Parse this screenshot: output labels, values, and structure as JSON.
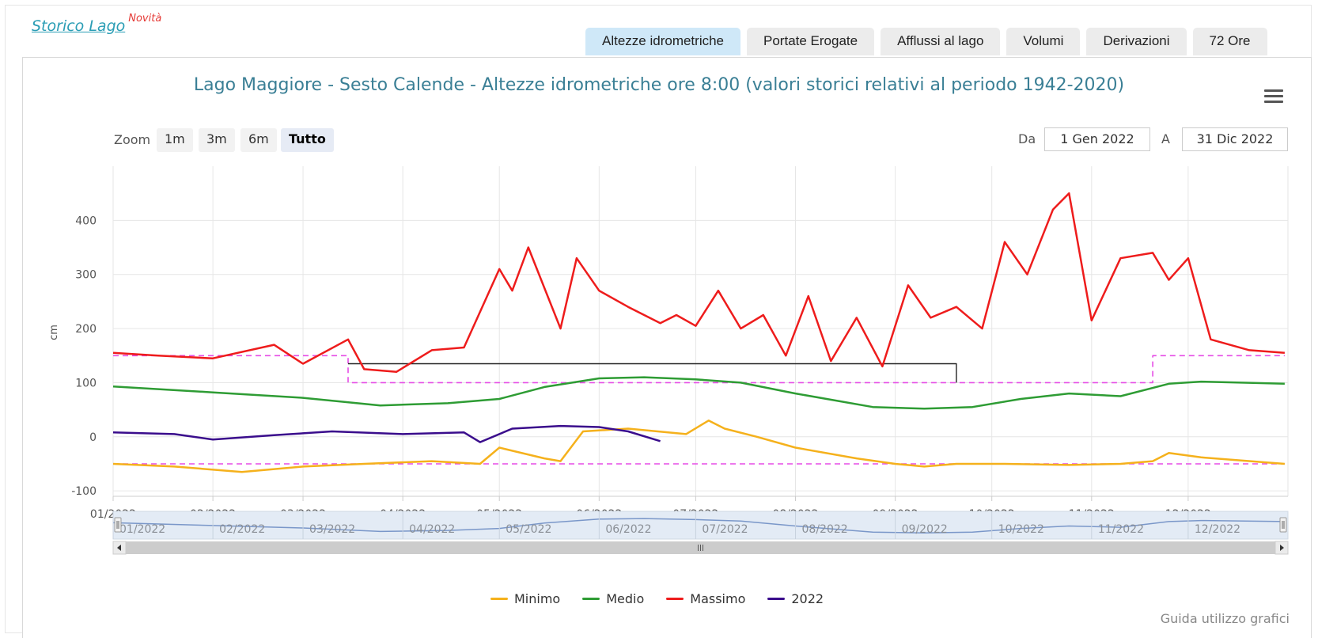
{
  "brand": {
    "link": "Storico Lago",
    "badge": "Novità"
  },
  "tabs": [
    {
      "label": "Altezze idrometriche",
      "active": true
    },
    {
      "label": "Portate Erogate",
      "active": false
    },
    {
      "label": "Afflussi al lago",
      "active": false
    },
    {
      "label": "Volumi",
      "active": false
    },
    {
      "label": "Derivazioni",
      "active": false
    },
    {
      "label": "72 Ore",
      "active": false
    }
  ],
  "zoom": {
    "label": "Zoom",
    "buttons": [
      "1m",
      "3m",
      "6m",
      "Tutto"
    ],
    "selected": "Tutto"
  },
  "range": {
    "from_label": "Da",
    "from_value": "1 Gen 2022",
    "to_label": "A",
    "to_value": "31 Dic 2022"
  },
  "guide": "Guida utilizzo grafici",
  "colors": {
    "Minimo": "#f5b11c",
    "Medio": "#2e9c34",
    "Massimo": "#ee1c1c",
    "2022": "#3a0d8c",
    "threshold": "#e64ce6",
    "reference": "#222222"
  },
  "chart_data": {
    "type": "line",
    "title": "Lago Maggiore - Sesto Calende - Altezze idrometriche ore 8:00 (valori storici relativi al periodo 1942-2020)",
    "ylabel": "cm",
    "xlabel": "",
    "ylim": [
      -110,
      500
    ],
    "yticks": [
      -100,
      0,
      100,
      200,
      300,
      400
    ],
    "x_tick_labels": [
      "01/2022",
      "02/2022",
      "03/2022",
      "04/2022",
      "05/2022",
      "06/2022",
      "07/2022",
      "08/2022",
      "09/2022",
      "10/2022",
      "11/2022",
      "12/2022"
    ],
    "grid": true,
    "legend_position": "bottom",
    "series": [
      {
        "name": "Minimo",
        "x": [
          "2022-01-01",
          "2022-01-20",
          "2022-02-10",
          "2022-03-01",
          "2022-03-20",
          "2022-04-10",
          "2022-04-25",
          "2022-05-01",
          "2022-05-15",
          "2022-05-20",
          "2022-05-27",
          "2022-06-10",
          "2022-06-28",
          "2022-07-05",
          "2022-07-10",
          "2022-07-20",
          "2022-08-01",
          "2022-08-20",
          "2022-09-01",
          "2022-09-10",
          "2022-09-20",
          "2022-10-05",
          "2022-10-25",
          "2022-11-10",
          "2022-11-20",
          "2022-11-25",
          "2022-12-05",
          "2022-12-31"
        ],
        "values": [
          -50,
          -55,
          -65,
          -55,
          -50,
          -45,
          -50,
          -20,
          -40,
          -45,
          10,
          15,
          5,
          30,
          15,
          0,
          -20,
          -40,
          -50,
          -55,
          -50,
          -50,
          -52,
          -50,
          -45,
          -30,
          -38,
          -50
        ]
      },
      {
        "name": "Medio",
        "x": [
          "2022-01-01",
          "2022-02-01",
          "2022-03-01",
          "2022-03-25",
          "2022-04-15",
          "2022-05-01",
          "2022-05-15",
          "2022-06-01",
          "2022-06-15",
          "2022-07-01",
          "2022-07-15",
          "2022-08-01",
          "2022-08-25",
          "2022-09-10",
          "2022-09-25",
          "2022-10-10",
          "2022-10-25",
          "2022-11-10",
          "2022-11-25",
          "2022-12-05",
          "2022-12-31"
        ],
        "values": [
          93,
          82,
          72,
          58,
          62,
          70,
          92,
          108,
          110,
          106,
          100,
          80,
          55,
          52,
          55,
          70,
          80,
          75,
          98,
          102,
          98
        ]
      },
      {
        "name": "Massimo",
        "x": [
          "2022-01-01",
          "2022-01-15",
          "2022-02-01",
          "2022-02-20",
          "2022-03-01",
          "2022-03-15",
          "2022-03-20",
          "2022-03-30",
          "2022-04-10",
          "2022-04-20",
          "2022-05-01",
          "2022-05-05",
          "2022-05-10",
          "2022-05-20",
          "2022-05-25",
          "2022-06-01",
          "2022-06-10",
          "2022-06-20",
          "2022-06-25",
          "2022-07-01",
          "2022-07-08",
          "2022-07-15",
          "2022-07-22",
          "2022-07-29",
          "2022-08-05",
          "2022-08-12",
          "2022-08-20",
          "2022-08-28",
          "2022-09-05",
          "2022-09-12",
          "2022-09-20",
          "2022-09-28",
          "2022-10-05",
          "2022-10-12",
          "2022-10-20",
          "2022-10-25",
          "2022-11-01",
          "2022-11-10",
          "2022-11-20",
          "2022-11-25",
          "2022-12-01",
          "2022-12-08",
          "2022-12-20",
          "2022-12-31"
        ],
        "values": [
          155,
          150,
          145,
          170,
          135,
          180,
          125,
          120,
          160,
          165,
          310,
          270,
          350,
          200,
          330,
          270,
          240,
          210,
          225,
          205,
          270,
          200,
          225,
          150,
          260,
          140,
          220,
          130,
          280,
          220,
          240,
          200,
          360,
          300,
          420,
          450,
          215,
          330,
          340,
          290,
          330,
          180,
          160,
          155
        ]
      },
      {
        "name": "2022",
        "x": [
          "2022-01-01",
          "2022-01-20",
          "2022-02-01",
          "2022-02-20",
          "2022-03-10",
          "2022-04-01",
          "2022-04-20",
          "2022-04-25",
          "2022-05-05",
          "2022-05-20",
          "2022-06-01",
          "2022-06-10",
          "2022-06-20"
        ],
        "values": [
          8,
          5,
          -5,
          3,
          10,
          5,
          8,
          -10,
          15,
          20,
          18,
          10,
          -8
        ]
      },
      {
        "name": "",
        "x": [
          "2022-01-01",
          "2022-03-15",
          "2022-03-15",
          "2022-11-20",
          "2022-11-20",
          "2022-12-31"
        ],
        "values": [
          150,
          150,
          100,
          100,
          150,
          150
        ]
      },
      {
        "name": "",
        "x": [
          "2022-01-01",
          "2022-12-31"
        ],
        "values": [
          -50,
          -50
        ]
      },
      {
        "name": "",
        "x": [
          "2022-03-15",
          "2022-09-20",
          "2022-09-20"
        ],
        "values": [
          135,
          135,
          100
        ]
      }
    ]
  }
}
